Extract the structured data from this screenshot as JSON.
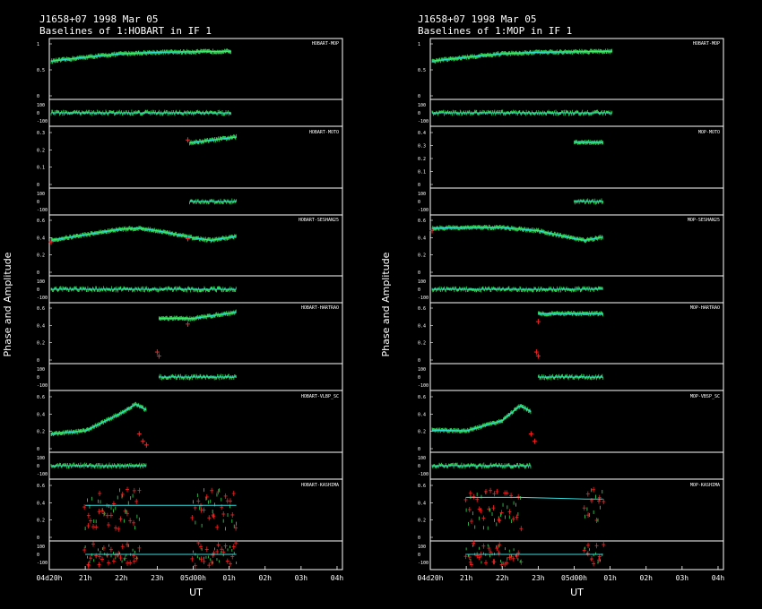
{
  "chart_data": [
    {
      "type": "scatter",
      "source": "J1658+07",
      "date": "1998 Mar 05",
      "title": "J1658+07   1998 Mar 05",
      "subtitle": "Baselines of 1:HOBART in IF 1",
      "ylabel": "Phase and Amplitude",
      "xlabel": "UT",
      "x_ticks": [
        "04d20h",
        "21h",
        "22h",
        "23h",
        "05d00h",
        "01h",
        "02h",
        "03h",
        "04h"
      ],
      "panels": [
        {
          "label": "HOBART-MOP",
          "amp_ticks": [
            "1",
            "0.5",
            "0"
          ],
          "phase_ticks": [
            "100",
            "0",
            "-100"
          ],
          "amp_ylim": [
            0,
            1.05
          ],
          "model_amp": [
            [
              20.05,
              0.7
            ],
            [
              21,
              0.78
            ],
            [
              22,
              0.85
            ],
            [
              23,
              0.88
            ],
            [
              24,
              0.89
            ],
            [
              25.05,
              0.9
            ]
          ],
          "obs_amp": [
            [
              20.05,
              25.05,
              0.7,
              0.9
            ]
          ],
          "outliers": []
        },
        {
          "label": "HOBART-MOTO",
          "amp_ticks": [
            "0.3",
            "0.2",
            "0.1",
            "0"
          ],
          "phase_ticks": [
            "100",
            "0",
            "-100"
          ],
          "amp_ylim": [
            0,
            0.35
          ],
          "model_amp": [
            [
              23.9,
              0.28
            ],
            [
              25.2,
              0.32
            ]
          ],
          "obs_amp": [
            [
              23.9,
              25.2,
              0.28,
              0.32
            ]
          ],
          "outliers": [
            [
              23.85,
              0.3
            ]
          ]
        },
        {
          "label": "HOBART-SESHAN25",
          "amp_ticks": [
            "0.6",
            "0.4",
            "0.2",
            "0"
          ],
          "phase_ticks": [
            "100",
            "0",
            "-100"
          ],
          "amp_ylim": [
            0,
            0.65
          ],
          "model_amp": [
            [
              20.05,
              0.4
            ],
            [
              21,
              0.47
            ],
            [
              22,
              0.54
            ],
            [
              22.5,
              0.55
            ],
            [
              23,
              0.52
            ],
            [
              24,
              0.43
            ],
            [
              24.5,
              0.4
            ],
            [
              25.2,
              0.45
            ]
          ],
          "obs_amp": [
            [
              20.05,
              25.2,
              0.4,
              0.45
            ]
          ],
          "outliers": [
            [
              20.05,
              0.38
            ],
            [
              23.85,
              0.42
            ]
          ]
        },
        {
          "label": "HOBART-HARTRAO",
          "amp_ticks": [
            "0.6",
            "0.4",
            "0.2",
            "0"
          ],
          "phase_ticks": [
            "100",
            "0",
            "-100"
          ],
          "amp_ylim": [
            0,
            0.65
          ],
          "model_amp": [
            [
              23.05,
              0.52
            ],
            [
              24,
              0.52
            ],
            [
              25.2,
              0.6
            ]
          ],
          "obs_amp": [
            [
              23.05,
              25.2,
              0.52,
              0.6
            ]
          ],
          "outliers": [
            [
              23.85,
              0.45
            ],
            [
              23.0,
              0.1
            ],
            [
              23.05,
              0.05
            ]
          ]
        },
        {
          "label": "HOBART-VLBP_SC",
          "amp_ticks": [
            "0.6",
            "0.4",
            "0.2",
            "0"
          ],
          "phase_ticks": [
            "100",
            "0",
            "-100"
          ],
          "amp_ylim": [
            0,
            0.7
          ],
          "model_amp": [
            [
              20.05,
              0.2
            ],
            [
              21,
              0.24
            ],
            [
              22,
              0.48
            ],
            [
              22.4,
              0.6
            ],
            [
              22.7,
              0.52
            ]
          ],
          "obs_amp": [
            [
              20.05,
              22.7,
              0.2,
              0.55
            ]
          ],
          "outliers": [
            [
              22.5,
              0.2
            ],
            [
              22.6,
              0.1
            ],
            [
              22.7,
              0.05
            ]
          ]
        },
        {
          "label": "HOBART-KASHIMA",
          "amp_ticks": [
            "0.6",
            "0.4",
            "0.2",
            "0"
          ],
          "phase_ticks": [
            "100",
            "0",
            "-100"
          ],
          "amp_ylim": [
            0,
            0.65
          ],
          "model_amp": [
            [
              21.0,
              0.4
            ],
            [
              22.5,
              0.4
            ],
            [
              24.0,
              0.4
            ],
            [
              25.2,
              0.4
            ]
          ],
          "obs_amp": [
            [
              21.0,
              22.5,
              0.1,
              0.6
            ],
            [
              24.0,
              25.2,
              0.1,
              0.6
            ]
          ],
          "outliers": []
        }
      ]
    },
    {
      "type": "scatter",
      "source": "J1658+07",
      "date": "1998 Mar 05",
      "title": "J1658+07   1998 Mar 05",
      "subtitle": "Baselines of 1:MOP in IF 1",
      "ylabel": "Phase and Amplitude",
      "xlabel": "UT",
      "x_ticks": [
        "04d20h",
        "21h",
        "22h",
        "23h",
        "05d00h",
        "01h",
        "02h",
        "03h",
        "04h"
      ],
      "panels": [
        {
          "label": "HOBART-MOP",
          "amp_ticks": [
            "1",
            "0.5",
            "0"
          ],
          "phase_ticks": [
            "100",
            "0",
            "-100"
          ],
          "amp_ylim": [
            0,
            1.05
          ],
          "model_amp": [
            [
              20.05,
              0.7
            ],
            [
              21,
              0.78
            ],
            [
              22,
              0.85
            ],
            [
              23,
              0.88
            ],
            [
              24,
              0.89
            ],
            [
              25.05,
              0.9
            ]
          ],
          "obs_amp": [
            [
              20.05,
              25.05,
              0.7,
              0.9
            ]
          ],
          "outliers": []
        },
        {
          "label": "MOP-MOTO",
          "amp_ticks": [
            "0.4",
            "0.3",
            "0.2",
            "0.1",
            "0"
          ],
          "phase_ticks": [
            "100",
            "0",
            "-100"
          ],
          "amp_ylim": [
            0,
            0.42
          ],
          "model_amp": [
            [
              24.0,
              0.34
            ],
            [
              24.8,
              0.34
            ]
          ],
          "obs_amp": [
            [
              24.0,
              24.8,
              0.34,
              0.36
            ]
          ],
          "outliers": []
        },
        {
          "label": "MOP-SESHAN25",
          "amp_ticks": [
            "0.6",
            "0.4",
            "0.2",
            "0"
          ],
          "phase_ticks": [
            "100",
            "0",
            "-100"
          ],
          "amp_ylim": [
            0,
            0.65
          ],
          "model_amp": [
            [
              20.05,
              0.55
            ],
            [
              21,
              0.56
            ],
            [
              22,
              0.56
            ],
            [
              23,
              0.52
            ],
            [
              24,
              0.42
            ],
            [
              24.3,
              0.4
            ],
            [
              24.8,
              0.44
            ]
          ],
          "obs_amp": [
            [
              20.05,
              24.8,
              0.45,
              0.55
            ]
          ],
          "outliers": [
            [
              20.05,
              0.52
            ]
          ]
        },
        {
          "label": "MOP-HARTRAO",
          "amp_ticks": [
            "0.6",
            "0.4",
            "0.2",
            "0"
          ],
          "phase_ticks": [
            "100",
            "0",
            "-100"
          ],
          "amp_ylim": [
            0,
            0.65
          ],
          "model_amp": [
            [
              23.0,
              0.58
            ],
            [
              24.8,
              0.58
            ]
          ],
          "obs_amp": [
            [
              23.0,
              24.8,
              0.56,
              0.6
            ]
          ],
          "outliers": [
            [
              23.0,
              0.48
            ],
            [
              23.0,
              0.05
            ],
            [
              22.95,
              0.1
            ]
          ]
        },
        {
          "label": "MOP-VBSP_SC",
          "amp_ticks": [
            "0.6",
            "0.4",
            "0.2",
            "0"
          ],
          "phase_ticks": [
            "100",
            "0",
            "-100"
          ],
          "amp_ylim": [
            0,
            0.7
          ],
          "model_amp": [
            [
              20.05,
              0.25
            ],
            [
              21,
              0.24
            ],
            [
              22,
              0.38
            ],
            [
              22.5,
              0.58
            ],
            [
              22.8,
              0.5
            ]
          ],
          "obs_amp": [
            [
              20.05,
              22.8,
              0.2,
              0.55
            ]
          ],
          "outliers": [
            [
              22.8,
              0.2
            ],
            [
              22.9,
              0.1
            ]
          ]
        },
        {
          "label": "MOP-KASHIMA",
          "amp_ticks": [
            "0.6",
            "0.4",
            "0.2",
            "0"
          ],
          "phase_ticks": [
            "100",
            "0",
            "-100"
          ],
          "amp_ylim": [
            0,
            0.65
          ],
          "model_amp": [
            [
              21.0,
              0.5
            ],
            [
              22.5,
              0.5
            ],
            [
              24.3,
              0.48
            ],
            [
              24.8,
              0.48
            ]
          ],
          "obs_amp": [
            [
              21.0,
              22.5,
              0.1,
              0.6
            ],
            [
              24.3,
              24.8,
              0.2,
              0.6
            ]
          ],
          "outliers": []
        }
      ]
    }
  ]
}
